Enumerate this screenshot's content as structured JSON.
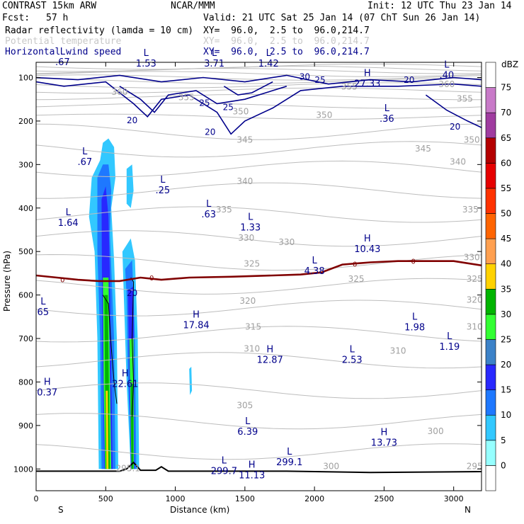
{
  "header": {
    "model": "CONTRAST 15km ARW",
    "center": "NCAR/MMM",
    "init": "Init: 12 UTC Thu 23 Jan 14",
    "fcst_label": "Fcst:",
    "fcst_value": "57 h",
    "valid": "Valid: 21 UTC Sat 25 Jan 14 (07 ChT Sun 26 Jan 14)"
  },
  "fields": [
    {
      "name": "Radar reflectivity (lamda = 10 cm)",
      "xy": "XY=  96.0,  2.5 to  96.0,214.7",
      "color": "#00008b"
    },
    {
      "name": "Potential temperature",
      "xy": "XY=  96.0,  2.5 to  96.0,214.7",
      "color": "#c8c8c8"
    },
    {
      "name": "Horizontal wind speed",
      "xy": "XY=  96.0,  2.5 to  96.0,214.7",
      "color": "#00008b"
    }
  ],
  "chart_data": {
    "type": "cross-section",
    "xlabel": "Distance (km)",
    "ylabel": "Pressure (hPa)",
    "xlim": [
      0,
      3200
    ],
    "ylim": [
      1050,
      65
    ],
    "xticks": [
      0,
      500,
      1000,
      1500,
      2000,
      2500,
      3000
    ],
    "yticks": [
      100,
      200,
      300,
      400,
      500,
      600,
      700,
      800,
      900,
      1000
    ],
    "x_end_labels": {
      "left": "S",
      "right": "N"
    },
    "colorbar": {
      "unit": "dBZ",
      "levels": [
        0,
        5,
        10,
        15,
        20,
        25,
        30,
        35,
        40,
        45,
        50,
        55,
        60,
        65,
        70,
        75
      ],
      "colors": [
        "#ffffff",
        "#96ffff",
        "#32c8ff",
        "#1e78ff",
        "#2828ff",
        "#3c82c8",
        "#32ff32",
        "#00b400",
        "#ffd200",
        "#ffa050",
        "#ff6400",
        "#ff3200",
        "#e60000",
        "#b40000",
        "#a03ca0",
        "#c87ac8",
        "#ffffff"
      ]
    },
    "theta_labels": [
      {
        "x": 600,
        "p": 140,
        "text": "360"
      },
      {
        "x": 1080,
        "p": 152,
        "text": "355"
      },
      {
        "x": 2250,
        "p": 128,
        "text": "355"
      },
      {
        "x": 2950,
        "p": 122,
        "text": "360"
      },
      {
        "x": 3080,
        "p": 155,
        "text": "355"
      },
      {
        "x": 1470,
        "p": 185,
        "text": "350"
      },
      {
        "x": 2070,
        "p": 193,
        "text": "350"
      },
      {
        "x": 3130,
        "p": 250,
        "text": "350"
      },
      {
        "x": 1500,
        "p": 250,
        "text": "345"
      },
      {
        "x": 2780,
        "p": 270,
        "text": "345"
      },
      {
        "x": 3030,
        "p": 300,
        "text": "340"
      },
      {
        "x": 1500,
        "p": 345,
        "text": "340"
      },
      {
        "x": 1350,
        "p": 410,
        "text": "335"
      },
      {
        "x": 3120,
        "p": 410,
        "text": "335"
      },
      {
        "x": 1510,
        "p": 475,
        "text": "330"
      },
      {
        "x": 1800,
        "p": 485,
        "text": "330"
      },
      {
        "x": 3130,
        "p": 520,
        "text": "330"
      },
      {
        "x": 1550,
        "p": 535,
        "text": "325"
      },
      {
        "x": 2300,
        "p": 570,
        "text": "325"
      },
      {
        "x": 3150,
        "p": 570,
        "text": "325"
      },
      {
        "x": 1520,
        "p": 620,
        "text": "320"
      },
      {
        "x": 3150,
        "p": 618,
        "text": "320"
      },
      {
        "x": 1560,
        "p": 680,
        "text": "315"
      },
      {
        "x": 1550,
        "p": 730,
        "text": "310"
      },
      {
        "x": 2600,
        "p": 735,
        "text": "310"
      },
      {
        "x": 3150,
        "p": 680,
        "text": "310"
      },
      {
        "x": 1500,
        "p": 860,
        "text": "305"
      },
      {
        "x": 2870,
        "p": 920,
        "text": "300"
      },
      {
        "x": 2120,
        "p": 1000,
        "text": "300"
      },
      {
        "x": 3150,
        "p": 1000,
        "text": "295"
      },
      {
        "x": 660,
        "p": 1005,
        "text": "295.1"
      }
    ],
    "extrema": [
      {
        "x": 190,
        "p": 60,
        "kind": "L",
        "value": ".67"
      },
      {
        "x": 790,
        "p": 63,
        "kind": "L",
        "value": "1.53"
      },
      {
        "x": 1280,
        "p": 63,
        "kind": "L",
        "value": "3.71"
      },
      {
        "x": 1670,
        "p": 63,
        "kind": "L",
        "value": "1.42"
      },
      {
        "x": 2380,
        "p": 110,
        "kind": "H",
        "value": "27.33"
      },
      {
        "x": 2950,
        "p": 90,
        "kind": "L",
        "value": ".40"
      },
      {
        "x": 2520,
        "p": 190,
        "kind": "L",
        "value": ".36"
      },
      {
        "x": 350,
        "p": 290,
        "kind": "L",
        "value": ".67"
      },
      {
        "x": 910,
        "p": 355,
        "kind": "L",
        "value": ".25"
      },
      {
        "x": 1240,
        "p": 410,
        "kind": "L",
        "value": ".63"
      },
      {
        "x": 1540,
        "p": 440,
        "kind": "L",
        "value": "1.33"
      },
      {
        "x": 230,
        "p": 430,
        "kind": "L",
        "value": "1.64"
      },
      {
        "x": 2380,
        "p": 490,
        "kind": "H",
        "value": "10.43"
      },
      {
        "x": 2000,
        "p": 540,
        "kind": "L",
        "value": "4.38"
      },
      {
        "x": 50,
        "p": 635,
        "kind": "L",
        "value": "65"
      },
      {
        "x": 1150,
        "p": 665,
        "kind": "H",
        "value": "17.84"
      },
      {
        "x": 2720,
        "p": 670,
        "kind": "L",
        "value": "1.98"
      },
      {
        "x": 2970,
        "p": 715,
        "kind": "L",
        "value": "1.19"
      },
      {
        "x": 1680,
        "p": 745,
        "kind": "H",
        "value": "12.87"
      },
      {
        "x": 2270,
        "p": 745,
        "kind": "L",
        "value": "2.53"
      },
      {
        "x": 640,
        "p": 800,
        "kind": "H",
        "value": "22.61"
      },
      {
        "x": 80,
        "p": 820,
        "kind": "H",
        "value": "0.37"
      },
      {
        "x": 1520,
        "p": 910,
        "kind": "L",
        "value": "6.39"
      },
      {
        "x": 2500,
        "p": 935,
        "kind": "H",
        "value": "13.73"
      },
      {
        "x": 1350,
        "p": 1000,
        "kind": "L",
        "value": "299.7"
      },
      {
        "x": 1550,
        "p": 1010,
        "kind": "H",
        "value": "11.13"
      },
      {
        "x": 1820,
        "p": 980,
        "kind": "L",
        "value": "299.1"
      }
    ],
    "wind_labels": [
      {
        "x": 1930,
        "p": 105,
        "text": "30"
      },
      {
        "x": 2040,
        "p": 112,
        "text": "25"
      },
      {
        "x": 2680,
        "p": 112,
        "text": "20"
      },
      {
        "x": 1210,
        "p": 165,
        "text": "25"
      },
      {
        "x": 1380,
        "p": 175,
        "text": "25"
      },
      {
        "x": 690,
        "p": 205,
        "text": "20"
      },
      {
        "x": 1250,
        "p": 232,
        "text": "20"
      },
      {
        "x": 3010,
        "p": 220,
        "text": "20"
      },
      {
        "x": 690,
        "p": 602,
        "text": "20"
      }
    ],
    "zero_labels": [
      {
        "x": 190,
        "p": 564,
        "text": "0"
      },
      {
        "x": 830,
        "p": 560,
        "text": "0"
      },
      {
        "x": 2290,
        "p": 528,
        "text": "0"
      },
      {
        "x": 2710,
        "p": 522,
        "text": "0"
      }
    ],
    "zero_isotherm": [
      [
        0,
        555
      ],
      [
        150,
        560
      ],
      [
        300,
        565
      ],
      [
        450,
        568
      ],
      [
        600,
        568
      ],
      [
        750,
        560
      ],
      [
        900,
        565
      ],
      [
        1100,
        560
      ],
      [
        1400,
        558
      ],
      [
        1700,
        555
      ],
      [
        1900,
        553
      ],
      [
        2050,
        548
      ],
      [
        2200,
        530
      ],
      [
        2400,
        525
      ],
      [
        2600,
        522
      ],
      [
        2800,
        522
      ],
      [
        3000,
        522
      ],
      [
        3200,
        532
      ]
    ],
    "surface": [
      [
        0,
        1005
      ],
      [
        400,
        1005
      ],
      [
        600,
        1005
      ],
      [
        650,
        1000
      ],
      [
        700,
        985
      ],
      [
        750,
        1003
      ],
      [
        860,
        1003
      ],
      [
        900,
        995
      ],
      [
        950,
        1005
      ],
      [
        1200,
        1005
      ],
      [
        1800,
        1005
      ],
      [
        2400,
        1008
      ],
      [
        3200,
        1006
      ]
    ],
    "reflectivity": [
      {
        "level": 5,
        "points": [
          [
            380,
            420
          ],
          [
            400,
            330
          ],
          [
            460,
            290
          ],
          [
            480,
            250
          ],
          [
            520,
            240
          ],
          [
            560,
            260
          ],
          [
            570,
            330
          ],
          [
            540,
            400
          ],
          [
            560,
            520
          ],
          [
            580,
            700
          ],
          [
            590,
            1000
          ],
          [
            450,
            1000
          ],
          [
            440,
            700
          ],
          [
            420,
            500
          ]
        ]
      },
      {
        "level": 5,
        "points": [
          [
            620,
            500
          ],
          [
            680,
            470
          ],
          [
            710,
            520
          ],
          [
            730,
            700
          ],
          [
            740,
            1000
          ],
          [
            680,
            1000
          ],
          [
            650,
            800
          ],
          [
            630,
            600
          ]
        ]
      },
      {
        "level": 5,
        "points": [
          [
            650,
            310
          ],
          [
            690,
            300
          ],
          [
            700,
            360
          ],
          [
            680,
            400
          ],
          [
            650,
            390
          ]
        ]
      },
      {
        "level": 5,
        "points": [
          [
            1100,
            770
          ],
          [
            1115,
            765
          ],
          [
            1120,
            820
          ],
          [
            1105,
            830
          ]
        ]
      },
      {
        "level": 10,
        "points": [
          [
            440,
            330
          ],
          [
            480,
            300
          ],
          [
            520,
            300
          ],
          [
            540,
            360
          ],
          [
            530,
            460
          ],
          [
            560,
            700
          ],
          [
            570,
            1000
          ],
          [
            470,
            1000
          ],
          [
            460,
            700
          ],
          [
            440,
            500
          ]
        ]
      },
      {
        "level": 10,
        "points": [
          [
            640,
            540
          ],
          [
            690,
            520
          ],
          [
            710,
            700
          ],
          [
            720,
            1000
          ],
          [
            690,
            1000
          ],
          [
            660,
            800
          ],
          [
            650,
            600
          ]
        ]
      },
      {
        "level": 15,
        "points": [
          [
            470,
            380
          ],
          [
            500,
            350
          ],
          [
            520,
            420
          ],
          [
            530,
            560
          ],
          [
            550,
            1000
          ],
          [
            490,
            1000
          ],
          [
            475,
            700
          ]
        ]
      },
      {
        "level": 15,
        "points": [
          [
            660,
            590
          ],
          [
            700,
            580
          ],
          [
            705,
            1000
          ],
          [
            680,
            1000
          ],
          [
            670,
            800
          ]
        ]
      },
      {
        "level": 25,
        "points": [
          [
            480,
            560
          ],
          [
            520,
            560
          ],
          [
            540,
            1000
          ],
          [
            495,
            1000
          ],
          [
            485,
            800
          ]
        ]
      },
      {
        "level": 25,
        "points": [
          [
            670,
            700
          ],
          [
            700,
            700
          ],
          [
            702,
            1000
          ],
          [
            685,
            1000
          ]
        ]
      },
      {
        "level": 30,
        "points": [
          [
            490,
            600
          ],
          [
            515,
            600
          ],
          [
            530,
            1000
          ],
          [
            500,
            1000
          ]
        ]
      },
      {
        "level": 30,
        "points": [
          [
            680,
            800
          ],
          [
            698,
            800
          ],
          [
            698,
            1000
          ],
          [
            686,
            1000
          ]
        ]
      },
      {
        "level": 35,
        "points": [
          [
            500,
            820
          ],
          [
            515,
            820
          ],
          [
            520,
            1000
          ],
          [
            505,
            1000
          ]
        ]
      }
    ]
  }
}
